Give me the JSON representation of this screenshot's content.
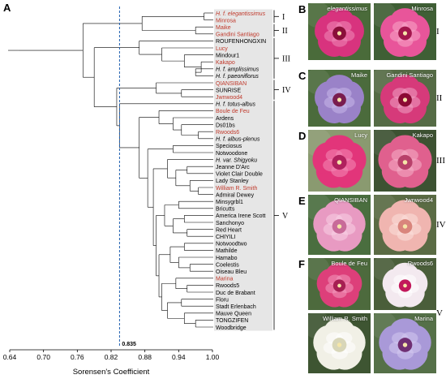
{
  "panel_labels": [
    "A",
    "B",
    "C",
    "D",
    "E",
    "F"
  ],
  "dendrogram": {
    "axis_title": "Sorensen's Coefficient",
    "threshold_label": "0.835",
    "threshold_value": 0.835,
    "x_ticks": [
      "0.64",
      "0.70",
      "0.76",
      "0.82",
      "0.88",
      "0.94",
      "1.00"
    ],
    "x_range": [
      0.64,
      1.0
    ],
    "colors": {
      "red_label": "#c0392b",
      "black_label": "#000000",
      "threshold_line": "#1f5fb0",
      "group_box": "#e6e6e6"
    },
    "leaves": [
      {
        "name": "H. f. elegantissimus",
        "red": true,
        "italic": true
      },
      {
        "name": "Minrosa",
        "red": true,
        "italic": false
      },
      {
        "name": "Maike",
        "red": true,
        "italic": false
      },
      {
        "name": "Gandini Santiago",
        "red": true,
        "italic": false
      },
      {
        "name": "ROUFENHONGXIN",
        "red": false,
        "italic": false
      },
      {
        "name": "Lucy",
        "red": true,
        "italic": false
      },
      {
        "name": "Mindour1",
        "red": false,
        "italic": false
      },
      {
        "name": "Kakapo",
        "red": true,
        "italic": false
      },
      {
        "name": "H. f. amplissimus",
        "red": false,
        "italic": true
      },
      {
        "name": "H. f. paeoniflorus",
        "red": false,
        "italic": true
      },
      {
        "name": "QIANSIBAN",
        "red": true,
        "italic": false
      },
      {
        "name": "SUNRISE",
        "red": false,
        "italic": false
      },
      {
        "name": "Jwnwood4",
        "red": true,
        "italic": false
      },
      {
        "name": "H. f. totus-albus",
        "red": false,
        "italic": true
      },
      {
        "name": "Boule de Feu",
        "red": true,
        "italic": false
      },
      {
        "name": "Ardens",
        "red": false,
        "italic": false
      },
      {
        "name": "Ds01bs",
        "red": false,
        "italic": false
      },
      {
        "name": "Rwoods6",
        "red": true,
        "italic": false
      },
      {
        "name": "H. f. albus-plenus",
        "red": false,
        "italic": true
      },
      {
        "name": "Speciosus",
        "red": false,
        "italic": false
      },
      {
        "name": "Notwoodone",
        "red": false,
        "italic": false
      },
      {
        "name": "H. var. Shigyoku",
        "red": false,
        "italic": true
      },
      {
        "name": "Jeanne D'Arc",
        "red": false,
        "italic": false
      },
      {
        "name": "Violet Clair Double",
        "red": false,
        "italic": false
      },
      {
        "name": "Lady Stanley",
        "red": false,
        "italic": false
      },
      {
        "name": "William R. Smith",
        "red": true,
        "italic": false
      },
      {
        "name": "Admiral Dewey",
        "red": false,
        "italic": false
      },
      {
        "name": "Minsygrbl1",
        "red": false,
        "italic": false
      },
      {
        "name": "Bricutts",
        "red": false,
        "italic": false
      },
      {
        "name": "America Irene Scott",
        "red": false,
        "italic": false
      },
      {
        "name": "Sanchonyo",
        "red": false,
        "italic": false
      },
      {
        "name": "Red Heart",
        "red": false,
        "italic": false
      },
      {
        "name": "CHIYILI",
        "red": false,
        "italic": false
      },
      {
        "name": "Notwoodtwo",
        "red": false,
        "italic": false
      },
      {
        "name": "Mathilde",
        "red": false,
        "italic": false
      },
      {
        "name": "Hamabo",
        "red": false,
        "italic": false
      },
      {
        "name": "Coelestis",
        "red": false,
        "italic": false
      },
      {
        "name": "Oiseau Bleu",
        "red": false,
        "italic": false
      },
      {
        "name": "Marina",
        "red": true,
        "italic": false
      },
      {
        "name": "Rwoods5",
        "red": false,
        "italic": false
      },
      {
        "name": "Duc de Brabant",
        "red": false,
        "italic": false
      },
      {
        "name": "Floru",
        "red": false,
        "italic": false
      },
      {
        "name": "Stadt Erlenbach",
        "red": false,
        "italic": false
      },
      {
        "name": "Mauve Queen",
        "red": false,
        "italic": false
      },
      {
        "name": "TONGZIFEN",
        "red": false,
        "italic": false
      },
      {
        "name": "Woodbridge",
        "red": false,
        "italic": false
      }
    ],
    "groups": [
      {
        "label": "I",
        "first": 0,
        "last": 1
      },
      {
        "label": "II",
        "first": 2,
        "last": 3
      },
      {
        "label": "III",
        "first": 4,
        "last": 9
      },
      {
        "label": "IV",
        "first": 10,
        "last": 12
      },
      {
        "label": "V",
        "first": 13,
        "last": 45
      }
    ]
  },
  "photos": {
    "rows": [
      {
        "letter": "B",
        "group": "I",
        "left": {
          "label": "elegantissimus",
          "italic": true,
          "petal": "#d8337e",
          "petal_light": "#f08ab8",
          "center": "#8a0f3a",
          "bg": "#4a6b3a"
        },
        "right": {
          "label": "Minrosa",
          "italic": false,
          "petal": "#e8559a",
          "petal_light": "#f7a7c9",
          "center": "#a3164c",
          "bg": "#3f5f35"
        }
      },
      {
        "letter": "C",
        "group": "II",
        "left": {
          "label": "Maike",
          "italic": false,
          "petal": "#9a82c8",
          "petal_light": "#c9b8ea",
          "center": "#7a1d4f",
          "bg": "#4b6b3c"
        },
        "right": {
          "label": "Gandini Santiago",
          "italic": false,
          "petal": "#d63a7a",
          "petal_light": "#f1a3c4",
          "center": "#8b0a34",
          "bg": "#556b45"
        }
      },
      {
        "letter": "D",
        "group": "III",
        "left": {
          "label": "Lucy",
          "italic": false,
          "petal": "#e2357a",
          "petal_light": "#f48bb6",
          "center": "#b0205d",
          "bg": "#8a9a70"
        },
        "right": {
          "label": "Kakapo",
          "italic": false,
          "petal": "#e0608e",
          "petal_light": "#f5b0c8",
          "center": "#b8406a",
          "bg": "#3d5232"
        }
      },
      {
        "letter": "E",
        "group": "IV",
        "left": {
          "label": "QIANSIBAN",
          "italic": false,
          "petal": "#e89ac2",
          "petal_light": "#f7d2e5",
          "center": "#c86b99",
          "bg": "#4a6e3f"
        },
        "right": {
          "label": "Jwnwood4",
          "italic": false,
          "petal": "#f0b5b0",
          "petal_light": "#fbe0dc",
          "center": "#d9857c",
          "bg": "#5a6b44"
        }
      },
      {
        "letter": "F",
        "group": "V",
        "left": {
          "label": "Boule de Feu",
          "italic": false,
          "petal": "#dd3f7a",
          "petal_light": "#f29bbd",
          "center": "#a61f52",
          "bg": "#4d6a3d"
        },
        "right": {
          "label": "Rwoods6",
          "italic": false,
          "petal": "#f3e9ef",
          "petal_light": "#ffffff",
          "center": "#c2185b",
          "bg": "#4a5e3a"
        }
      },
      {
        "letter": "",
        "group": "",
        "left": {
          "label": "William R. Smith",
          "italic": false,
          "petal": "#f1f0e6",
          "petal_light": "#ffffff",
          "center": "#d8d6b8",
          "bg": "#3e5532"
        },
        "right": {
          "label": "Marina",
          "italic": false,
          "petal": "#a999d8",
          "petal_light": "#d3c9f0",
          "center": "#6f2f73",
          "bg": "#557048"
        }
      }
    ]
  }
}
